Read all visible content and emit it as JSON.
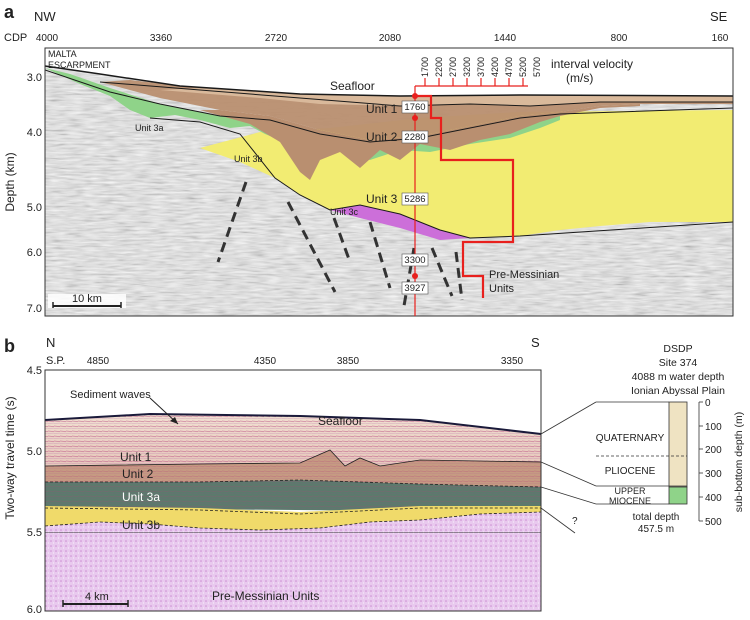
{
  "panel_a": {
    "label": "a",
    "dir_left": "NW",
    "dir_right": "SE",
    "cdp_label": "CDP",
    "cdp_ticks": [
      "4000",
      "3360",
      "2720",
      "2080",
      "1440",
      "800",
      "160"
    ],
    "ylabel": "Depth (km)",
    "y_ticks": [
      "3.0",
      "4.0",
      "5.0",
      "6.0",
      "7.0"
    ],
    "malta_line1": "MALTA",
    "malta_line2": "ESCARPMENT",
    "seafloor": "Seafloor",
    "unit1": "Unit 1",
    "unit2": "Unit 2",
    "unit3": "Unit 3",
    "unit3a": "Unit 3a",
    "unit3b": "Unit 3b",
    "unit3c": "Unit 3c",
    "pre_line1": "Pre-Messinian",
    "pre_line2": "Units",
    "velocity_title1": "interval velocity",
    "velocity_title2": "(m/s)",
    "velocity_scale": [
      "1700",
      "2200",
      "2700",
      "3200",
      "3700",
      "4200",
      "4700",
      "5200",
      "5700"
    ],
    "velocity_boxes": [
      "1760",
      "2280",
      "5286",
      "3300",
      "3927"
    ],
    "scale_bar": "10 km",
    "colors": {
      "unit1": "#d9b99b",
      "unit2": "#b98f70",
      "unit3": "#f2ec72",
      "unit3a": "#8fd389",
      "unit3c": "#cc6fd9",
      "velocity": "#e8201d"
    }
  },
  "panel_b": {
    "label": "b",
    "dir_left": "N",
    "dir_right": "S",
    "sp_label": "S.P.",
    "sp_ticks": [
      "4850",
      "4350",
      "3850",
      "3350"
    ],
    "ylabel": "Two-way travel time (s)",
    "y_ticks": [
      "4.5",
      "5.0",
      "5.5",
      "6.0"
    ],
    "sediment_waves": "Sediment waves",
    "seafloor": "Seafloor",
    "unit1": "Unit 1",
    "unit2": "Unit 2",
    "unit3a": "Unit 3a",
    "unit3b": "Unit 3b",
    "pre": "Pre-Messinian Units",
    "scale_bar": "4 km"
  },
  "dsdp": {
    "line1": "DSDP",
    "line2": "Site 374",
    "line3": "4088 m water depth",
    "line4": "Ionian Abyssal Plain",
    "quaternary": "QUATERNARY",
    "pliocene": "PLIOCENE",
    "upper": "UPPER",
    "miocene": "MIOCENE",
    "total1": "total depth",
    "total2": "457.5 m",
    "question": "?",
    "axis_label": "sub-bottom depth (m)",
    "ticks": [
      "0",
      "100",
      "200",
      "300",
      "400",
      "500"
    ]
  }
}
